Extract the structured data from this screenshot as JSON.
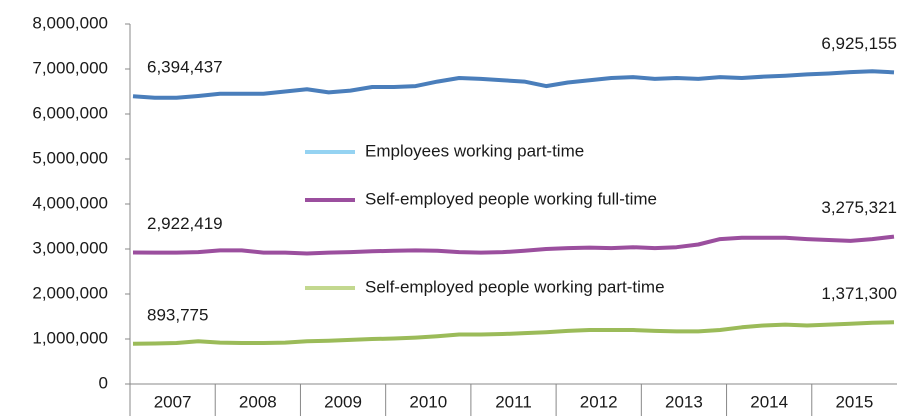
{
  "chart_data": {
    "type": "line",
    "categories": [
      "2007",
      null,
      null,
      null,
      "2008",
      null,
      null,
      null,
      "2009",
      null,
      null,
      null,
      "2010",
      null,
      null,
      null,
      "2011",
      null,
      null,
      null,
      "2012",
      null,
      null,
      null,
      "2013",
      null,
      null,
      null,
      "2014",
      null,
      null,
      null,
      "2015",
      null,
      null,
      null
    ],
    "series": [
      {
        "color": "#4a7ebb",
        "values": [
          6394437,
          6360000,
          6360000,
          6400000,
          6450000,
          6450000,
          6450000,
          6500000,
          6550000,
          6480000,
          6520000,
          6600000,
          6600000,
          6620000,
          6720000,
          6800000,
          6780000,
          6750000,
          6720000,
          6620000,
          6700000,
          6750000,
          6800000,
          6820000,
          6780000,
          6800000,
          6780000,
          6820000,
          6800000,
          6830000,
          6850000,
          6880000,
          6900000,
          6930000,
          6950000,
          6925155
        ],
        "value_labels": [
          "6,394,437",
          null,
          null,
          null,
          null,
          null,
          null,
          null,
          null,
          null,
          null,
          null,
          null,
          null,
          null,
          null,
          null,
          null,
          null,
          null,
          null,
          null,
          null,
          null,
          null,
          null,
          null,
          null,
          null,
          null,
          null,
          null,
          null,
          null,
          null,
          "6,925,155"
        ]
      },
      {
        "color": "#9b4f9e",
        "values": [
          2922419,
          2920000,
          2920000,
          2930000,
          2970000,
          2970000,
          2920000,
          2920000,
          2900000,
          2920000,
          2930000,
          2950000,
          2960000,
          2970000,
          2960000,
          2930000,
          2920000,
          2930000,
          2960000,
          3000000,
          3020000,
          3030000,
          3020000,
          3040000,
          3020000,
          3040000,
          3100000,
          3220000,
          3250000,
          3250000,
          3250000,
          3220000,
          3200000,
          3180000,
          3220000,
          3275321
        ],
        "value_labels": [
          "2,922,419",
          null,
          null,
          null,
          null,
          null,
          null,
          null,
          null,
          null,
          null,
          null,
          null,
          null,
          null,
          null,
          null,
          null,
          null,
          null,
          null,
          null,
          null,
          null,
          null,
          null,
          null,
          null,
          null,
          null,
          null,
          null,
          null,
          null,
          null,
          "3,275,321"
        ]
      },
      {
        "color": "#9bbb59",
        "values": [
          893775,
          900000,
          910000,
          950000,
          920000,
          910000,
          910000,
          920000,
          950000,
          960000,
          980000,
          1000000,
          1010000,
          1030000,
          1060000,
          1100000,
          1100000,
          1110000,
          1130000,
          1150000,
          1180000,
          1200000,
          1200000,
          1200000,
          1180000,
          1170000,
          1170000,
          1200000,
          1260000,
          1300000,
          1320000,
          1300000,
          1320000,
          1340000,
          1360000,
          1371300
        ],
        "value_labels": [
          "893,775",
          null,
          null,
          null,
          null,
          null,
          null,
          null,
          null,
          null,
          null,
          null,
          null,
          null,
          null,
          null,
          null,
          null,
          null,
          null,
          null,
          null,
          null,
          null,
          null,
          null,
          null,
          null,
          null,
          null,
          null,
          null,
          null,
          null,
          null,
          "1,371,300"
        ]
      }
    ],
    "legend": [
      {
        "name": "Employees working part-time",
        "color": "#95d3f2"
      },
      {
        "name": "Self-employed people working full-time",
        "color": "#9b4f9e"
      },
      {
        "name": "Self-employed people working part-time",
        "color": "#c3d88f"
      }
    ],
    "ylim": [
      0,
      8000000
    ],
    "yticks": [
      0,
      {
        "value": 1000000,
        "label": "1,000,000"
      },
      {
        "value": 2000000,
        "label": "2,000,000"
      },
      {
        "value": 3000000,
        "label": "3,000,000"
      },
      {
        "value": 4000000,
        "label": "4,000,000"
      },
      {
        "value": 5000000,
        "label": "5,000,000"
      },
      {
        "value": 6000000,
        "label": "6,000,000"
      },
      {
        "value": 7000000,
        "label": "7,000,000"
      },
      {
        "value": 8000000,
        "label": "8,000,000"
      }
    ]
  }
}
